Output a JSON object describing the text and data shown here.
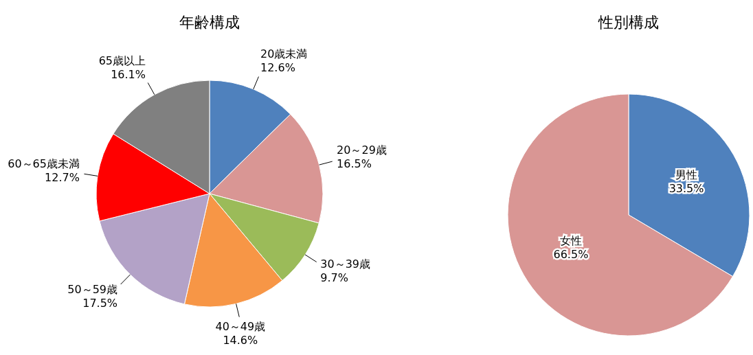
{
  "chart_data": [
    {
      "type": "pie",
      "title": "年齢構成",
      "categories": [
        "20歳未満",
        "20～29歳",
        "30～39歳",
        "40～49歳",
        "50～59歳",
        "60～65歳未満",
        "65歳以上"
      ],
      "values": [
        12.6,
        16.5,
        9.7,
        14.6,
        17.5,
        12.7,
        16.1
      ],
      "colors": [
        "#4f81bd",
        "#d99694",
        "#9bbb59",
        "#f79646",
        "#b3a2c7",
        "#ff0000",
        "#808080"
      ],
      "value_labels": [
        "12.6%",
        "16.5%",
        "9.7%",
        "14.6%",
        "17.5%",
        "12.7%",
        "16.1%"
      ]
    },
    {
      "type": "pie",
      "title": "性別構成",
      "categories": [
        "男性",
        "女性"
      ],
      "values": [
        33.5,
        66.5
      ],
      "colors": [
        "#4f81bd",
        "#d99694"
      ],
      "value_labels": [
        "33.5%",
        "66.5%"
      ]
    }
  ]
}
